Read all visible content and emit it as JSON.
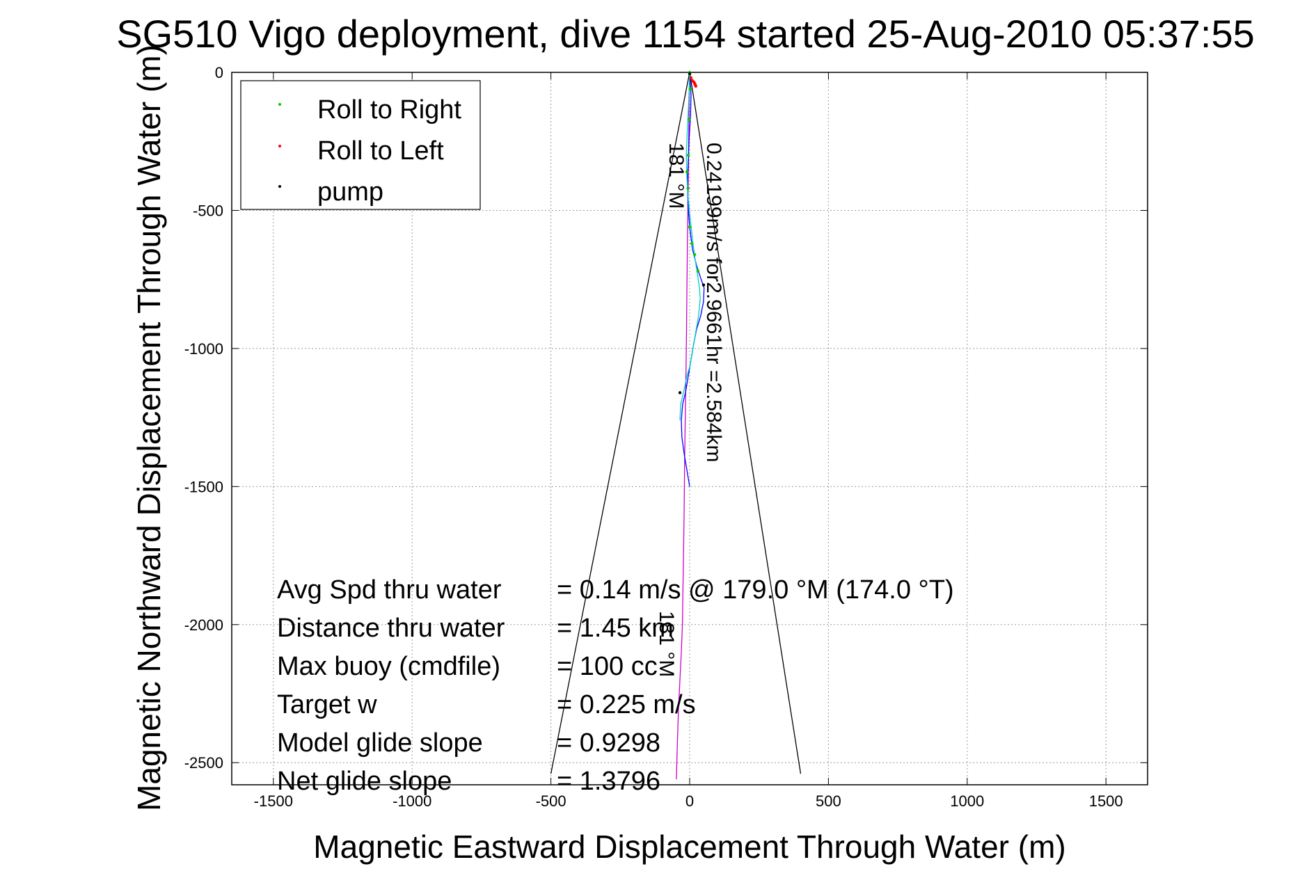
{
  "chart_data": {
    "type": "line",
    "title": "SG510 Vigo deployment, dive 1154 started 25-Aug-2010 05:37:55",
    "xlabel": "Magnetic Eastward Displacement Through Water (m)",
    "ylabel": "Magnetic Northward Displacement Through Water (m)",
    "xlim": [
      -1650,
      1650
    ],
    "ylim": [
      -2580,
      0
    ],
    "xticks": [
      -1500,
      -1000,
      -500,
      0,
      500,
      1000,
      1500
    ],
    "yticks": [
      0,
      -500,
      -1000,
      -1500,
      -2000,
      -2500
    ],
    "grid": true,
    "legend_position": "top-left",
    "legend": [
      {
        "label": "Roll to Right",
        "color": "#00cc00"
      },
      {
        "label": "Roll to Left",
        "color": "#ff0000"
      },
      {
        "label": "pump",
        "color": "#000000"
      }
    ],
    "series": [
      {
        "type": "line",
        "color": "#000000",
        "x": [
          -500,
          0,
          400
        ],
        "y": [
          -2540,
          0,
          -2540
        ]
      },
      {
        "type": "line",
        "color": "#cc00cc",
        "x": [
          0,
          -3,
          -5,
          -8,
          -10,
          -12,
          -15,
          -18,
          -20,
          -23,
          -26,
          -30,
          -35,
          -40,
          -45,
          -48
        ],
        "y": [
          0,
          -200,
          -400,
          -600,
          -800,
          -1000,
          -1200,
          -1400,
          -1600,
          -1800,
          -2000,
          -2100,
          -2200,
          -2300,
          -2450,
          -2560
        ]
      },
      {
        "type": "line",
        "color": "#0000ff",
        "x": [
          0,
          5,
          3,
          -2,
          -5,
          -8,
          -6,
          0,
          10,
          25,
          38,
          52,
          50,
          40,
          25,
          15,
          5,
          -5,
          -15,
          -25,
          -30,
          -28,
          -20,
          -10,
          0
        ],
        "y": [
          0,
          -80,
          -160,
          -240,
          -320,
          -400,
          -480,
          -560,
          -640,
          -700,
          -740,
          -780,
          -830,
          -880,
          -930,
          -980,
          -1040,
          -1100,
          -1160,
          -1200,
          -1260,
          -1320,
          -1380,
          -1440,
          -1500
        ]
      },
      {
        "type": "line",
        "color": "#00cccc",
        "x": [
          0,
          -3,
          -8,
          -12,
          -10,
          -5,
          3,
          12,
          20,
          28,
          35,
          38,
          32,
          22,
          12,
          2,
          -10,
          -20,
          -32,
          -35
        ],
        "y": [
          0,
          -100,
          -200,
          -300,
          -380,
          -460,
          -540,
          -620,
          -680,
          -730,
          -780,
          -820,
          -880,
          -940,
          -1000,
          -1060,
          -1100,
          -1150,
          -1200,
          -1260
        ]
      },
      {
        "type": "scatter",
        "color": "#00cc00",
        "x": [
          0,
          2,
          -2,
          -5,
          -10,
          -6,
          0,
          8,
          18,
          30
        ],
        "y": [
          0,
          -60,
          -170,
          -300,
          -360,
          -420,
          -560,
          -620,
          -660,
          -720
        ]
      },
      {
        "type": "scatter",
        "color": "#ff0000",
        "x": [
          5,
          10,
          15,
          18,
          20,
          22
        ],
        "y": [
          -20,
          -30,
          -35,
          -40,
          -45,
          -50
        ]
      },
      {
        "type": "scatter",
        "color": "#000000",
        "x": [
          0,
          50,
          -35
        ],
        "y": [
          -5,
          -770,
          -1160
        ]
      }
    ],
    "annotations": {
      "line1": "0.24199m/s for2.9661hr =2.584km",
      "line2": "181 °M",
      "line3": "181 °M"
    },
    "stats": [
      {
        "label": "Avg Spd thru water",
        "value": "=  0.14 m/s @ 179.0 °M (174.0 °T)"
      },
      {
        "label": "Distance thru water",
        "value": "=  1.45 km"
      },
      {
        "label": "Max buoy (cmdfile)",
        "value": "= 100 cc"
      },
      {
        "label": "Target w",
        "value": "= 0.225 m/s"
      },
      {
        "label": "Model glide slope",
        "value": "= 0.9298"
      },
      {
        "label": "Net glide slope",
        "value": "= 1.3796"
      }
    ]
  }
}
